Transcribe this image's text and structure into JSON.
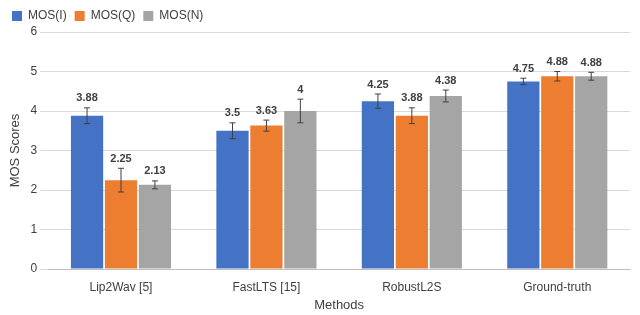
{
  "chart_data": {
    "type": "bar",
    "x_label": "Methods",
    "y_label": "MOS Scores",
    "categories": [
      "Lip2Wav [5]",
      "FastLTS [15]",
      "RobustL2S",
      "Ground-truth"
    ],
    "series": [
      {
        "name": "MOS(I)",
        "color": "#4472c4",
        "values": [
          3.88,
          3.5,
          4.25,
          4.75
        ],
        "errors": [
          0.2,
          0.2,
          0.18,
          0.08
        ]
      },
      {
        "name": "MOS(Q)",
        "color": "#ed7d31",
        "values": [
          2.25,
          3.63,
          3.88,
          4.88
        ],
        "errors": [
          0.3,
          0.14,
          0.2,
          0.12
        ]
      },
      {
        "name": "MOS(N)",
        "color": "#a5a5a5",
        "values": [
          2.13,
          4,
          4.38,
          4.88
        ],
        "errors": [
          0.1,
          0.3,
          0.15,
          0.1
        ]
      }
    ],
    "ylim": [
      0,
      6
    ],
    "yticks": [
      0,
      1,
      2,
      3,
      4,
      5,
      6
    ],
    "grid": true,
    "legend": "top-left",
    "data_labels": true
  }
}
